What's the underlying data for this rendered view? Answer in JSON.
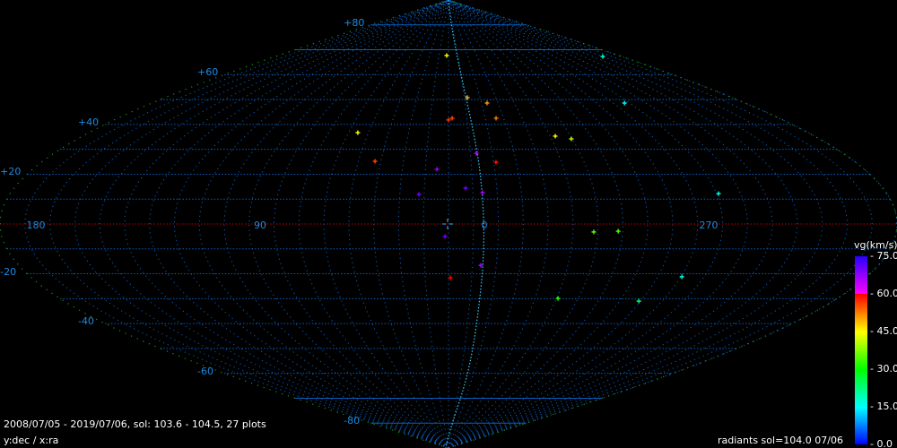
{
  "chart_data": {
    "type": "scatter",
    "projection": "sinusoidal",
    "xlabel": "x:ra",
    "ylabel": "y:dec",
    "axis_caption": "y:dec / x:ra",
    "ra_tick_labels": [
      {
        "ra": 180,
        "text": "180"
      },
      {
        "ra": 90,
        "text": "90"
      },
      {
        "ra": 0,
        "text": "0"
      },
      {
        "ra": 270,
        "text": "270"
      }
    ],
    "dec_tick_labels": [
      {
        "dec": 80,
        "text": "+80"
      },
      {
        "dec": 60,
        "text": "+60"
      },
      {
        "dec": 40,
        "text": "+40"
      },
      {
        "dec": 20,
        "text": "+20"
      },
      {
        "dec": -20,
        "text": "-20"
      },
      {
        "dec": -40,
        "text": "-40"
      },
      {
        "dec": -60,
        "text": "-60"
      },
      {
        "dec": -80,
        "text": "-80"
      }
    ],
    "grid": true,
    "grid_step_deg": 10,
    "center_ra": 14.4,
    "ra_direction": "increasing-left",
    "colorbar": {
      "label": "vg(km/s)",
      "range": [
        0,
        75
      ],
      "ticks": [
        "75.0",
        "60.0",
        "45.0",
        "30.0",
        "15.0",
        "0.0"
      ],
      "placement": "right"
    },
    "points": [
      {
        "ra": 16.3,
        "dec": 67.7,
        "vg": 45
      },
      {
        "ra": 214.0,
        "dec": 67.3,
        "vg": 17
      },
      {
        "ra": 2.4,
        "dec": 50.8,
        "vg": 50
      },
      {
        "ra": 351.0,
        "dec": 48.6,
        "vg": 51
      },
      {
        "ra": 267.6,
        "dec": 48.6,
        "vg": 15
      },
      {
        "ra": 14.4,
        "dec": 41.8,
        "vg": 57
      },
      {
        "ra": 12.4,
        "dec": 42.5,
        "vg": 56
      },
      {
        "ra": 348.5,
        "dec": 42.5,
        "vg": 53
      },
      {
        "ra": 59.8,
        "dec": 36.7,
        "vg": 45
      },
      {
        "ra": 321.9,
        "dec": 35.3,
        "vg": 45
      },
      {
        "ra": 314.8,
        "dec": 34.2,
        "vg": 41
      },
      {
        "ra": 1.7,
        "dec": 28.4,
        "vg": 65
      },
      {
        "ra": 353.4,
        "dec": 24.8,
        "vg": 59
      },
      {
        "ra": 47.0,
        "dec": 25.2,
        "vg": 56
      },
      {
        "ra": 19.4,
        "dec": 22.0,
        "vg": 67
      },
      {
        "ra": 26.5,
        "dec": 11.9,
        "vg": 70
      },
      {
        "ra": 7.3,
        "dec": 14.4,
        "vg": 70
      },
      {
        "ra": 0.4,
        "dec": 12.6,
        "vg": 66
      },
      {
        "ra": 15.8,
        "dec": -5.0,
        "vg": 70
      },
      {
        "ra": 0.9,
        "dec": -16.6,
        "vg": 66
      },
      {
        "ra": 13.6,
        "dec": -21.6,
        "vg": 60
      },
      {
        "ra": 316.0,
        "dec": -3.2,
        "vg": 36
      },
      {
        "ra": 306.2,
        "dec": -2.9,
        "vg": 35
      },
      {
        "ra": 263.5,
        "dec": 12.2,
        "vg": 17
      },
      {
        "ra": 273.9,
        "dec": -21.2,
        "vg": 17
      },
      {
        "ra": 323.7,
        "dec": -29.9,
        "vg": 32
      },
      {
        "ra": 285.3,
        "dec": -31.0,
        "vg": 23
      }
    ]
  },
  "footer": {
    "summary": "2008/07/05 - 2019/07/06,  sol: 103.6 - 104.5, 27 plots",
    "axes": "y:dec / x:ra",
    "radiants": "radiants sol=104.0 07/06"
  },
  "colors": {
    "grid": "#0a5fc0",
    "boundary": "#1a9a1a",
    "equator": "#c00000",
    "label": "#1a8ae6",
    "curve": "#33ccff",
    "background": "#000000"
  }
}
